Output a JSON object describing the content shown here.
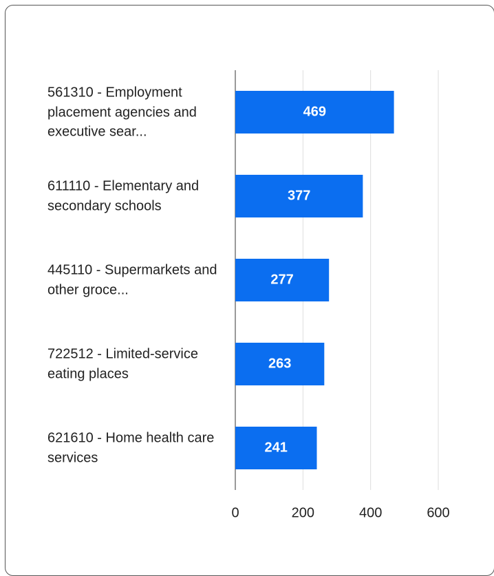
{
  "chart_data": {
    "type": "bar",
    "orientation": "horizontal",
    "categories": [
      "561310 - Employment placement agencies and executive sear...",
      "611110 - Elementary and secondary schools",
      "445110 - Supermarkets and other groce...",
      "722512 - Limited-service eating places",
      "621610 - Home health care services"
    ],
    "values": [
      469,
      377,
      277,
      263,
      241
    ],
    "color": "#0b6ef0",
    "xlim": [
      0,
      600
    ],
    "xticks": [
      0,
      200,
      400,
      600
    ],
    "grid": true
  }
}
